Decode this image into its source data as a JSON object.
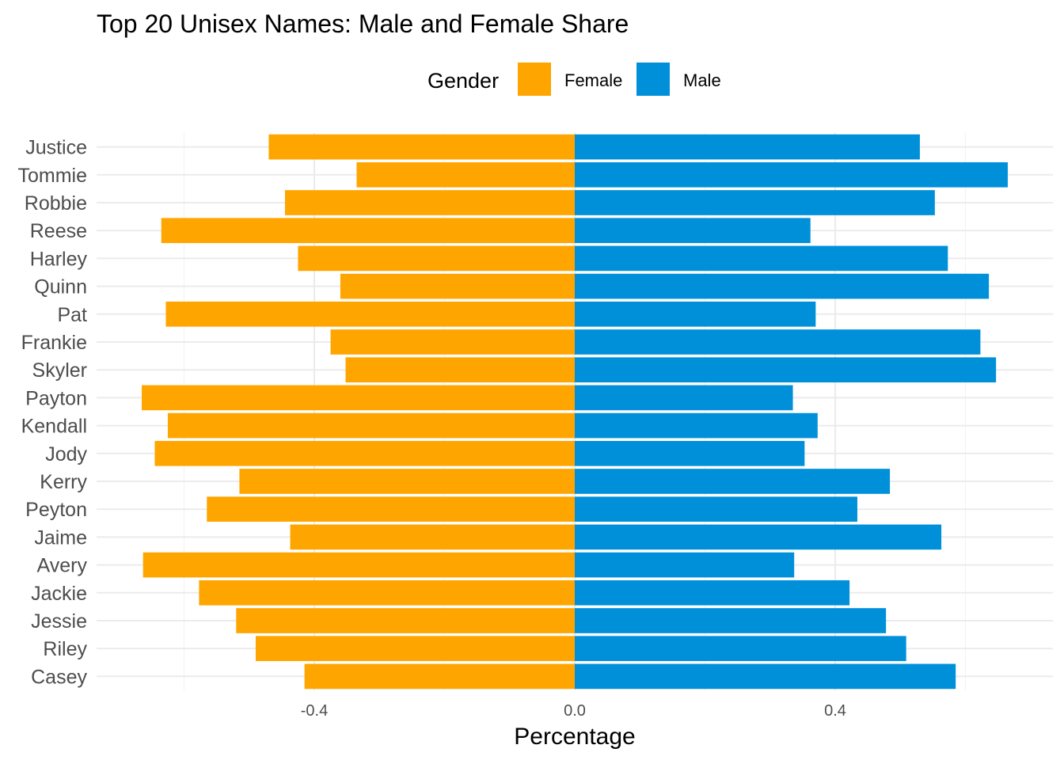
{
  "chart_data": {
    "type": "bar",
    "orientation": "horizontal",
    "title": "Top 20 Unisex Names: Male and Female Share",
    "xlabel": "Percentage",
    "ylabel": "",
    "xlim": [
      -0.73,
      0.73
    ],
    "xticks": [
      -0.4,
      0.0,
      0.4
    ],
    "xtick_labels": [
      "-0.4",
      "0.0",
      "0.4"
    ],
    "grid": true,
    "legend": {
      "title": "Gender",
      "position": "top",
      "entries": [
        {
          "label": "Female",
          "color": "#FFA500"
        },
        {
          "label": "Male",
          "color": "#0090D9"
        }
      ]
    },
    "categories": [
      "Justice",
      "Tommie",
      "Robbie",
      "Reese",
      "Harley",
      "Quinn",
      "Pat",
      "Frankie",
      "Skyler",
      "Payton",
      "Kendall",
      "Jody",
      "Kerry",
      "Peyton",
      "Jaime",
      "Avery",
      "Jackie",
      "Jessie",
      "Riley",
      "Casey"
    ],
    "series": [
      {
        "name": "Female",
        "color": "#FFA500",
        "values": [
          -0.47,
          -0.335,
          -0.445,
          -0.635,
          -0.425,
          -0.36,
          -0.628,
          -0.375,
          -0.352,
          -0.665,
          -0.625,
          -0.645,
          -0.515,
          -0.565,
          -0.437,
          -0.663,
          -0.577,
          -0.52,
          -0.49,
          -0.415
        ]
      },
      {
        "name": "Male",
        "color": "#0090D9",
        "values": [
          0.53,
          0.665,
          0.553,
          0.362,
          0.573,
          0.636,
          0.37,
          0.623,
          0.647,
          0.335,
          0.373,
          0.353,
          0.484,
          0.434,
          0.563,
          0.337,
          0.422,
          0.478,
          0.509,
          0.585
        ]
      }
    ]
  }
}
